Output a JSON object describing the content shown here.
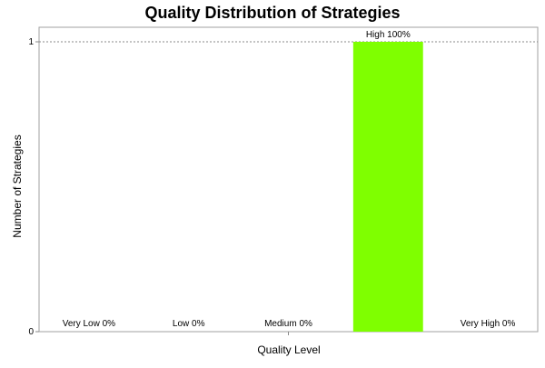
{
  "chart_data": {
    "type": "bar",
    "title": "Quality Distribution of Strategies",
    "xlabel": "Quality Level",
    "ylabel": "Number of Strategies",
    "categories": [
      "Very Low",
      "Low",
      "Medium",
      "High",
      "Very High"
    ],
    "values": [
      0,
      0,
      0,
      1,
      0
    ],
    "percent_labels": [
      "Very Low 0%",
      "Low 0%",
      "Medium 0%",
      "High 100%",
      "Very High 0%"
    ],
    "ylim": [
      0,
      1
    ],
    "yticks": [
      0,
      1
    ],
    "bar_color": "#7fff00",
    "gridline_style": "dashed",
    "grid": true
  }
}
